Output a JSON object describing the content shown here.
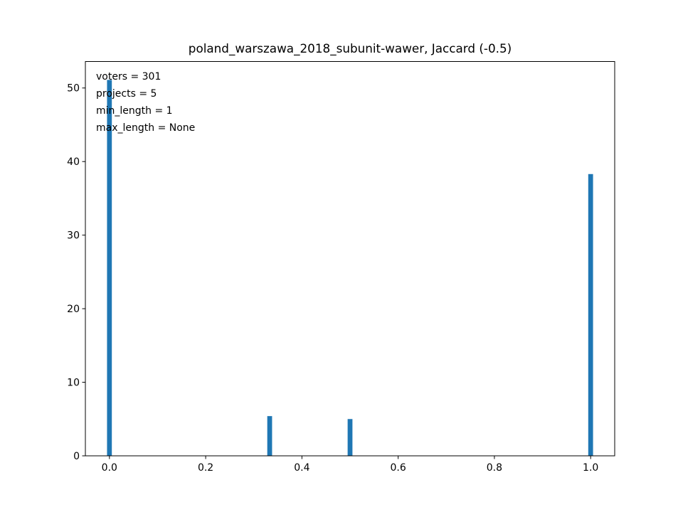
{
  "chart_data": {
    "type": "bar",
    "title": "poland_warszawa_2018_subunit-wawer, Jaccard (-0.5)",
    "xlabel": "",
    "ylabel": "",
    "xlim": [
      -0.05,
      1.05
    ],
    "ylim": [
      0,
      53.6
    ],
    "xticks": [
      0.0,
      0.2,
      0.4,
      0.6,
      0.8,
      1.0
    ],
    "xtick_labels": [
      "0.0",
      "0.2",
      "0.4",
      "0.6",
      "0.8",
      "1.0"
    ],
    "yticks": [
      0,
      10,
      20,
      30,
      40,
      50
    ],
    "ytick_labels": [
      "0",
      "10",
      "20",
      "30",
      "40",
      "50"
    ],
    "bar_width": 0.01,
    "x": [
      0.0,
      0.333,
      0.5,
      1.0
    ],
    "values": [
      51.1,
      5.4,
      5.0,
      38.3
    ],
    "color": "#1f77b4",
    "grid": false,
    "annotations": [
      "voters = 301",
      "projects = 5",
      "min_length = 1",
      "max_length = None"
    ],
    "annotation_placement": "top-left"
  }
}
